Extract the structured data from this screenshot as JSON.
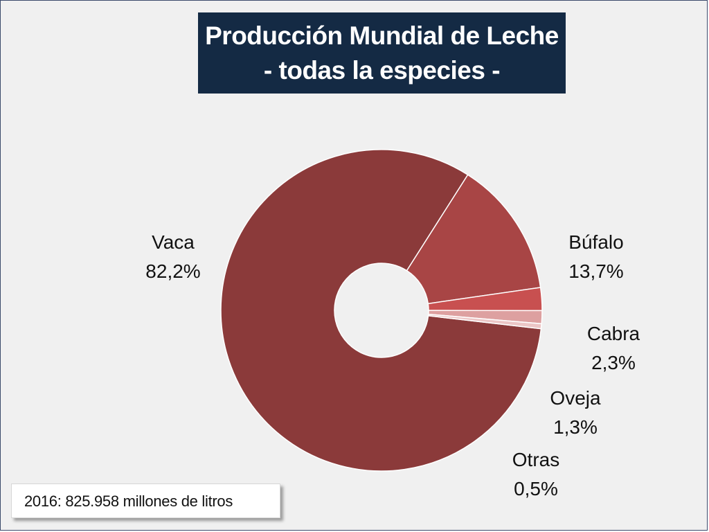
{
  "chart_data": {
    "type": "pie",
    "title_lines": [
      "Producción Mundial de Leche",
      "- todas la especies -"
    ],
    "slices": [
      {
        "name": "Vaca",
        "label": "82,2%",
        "value": 82.2,
        "color": "#8b3a3a"
      },
      {
        "name": "Búfalo",
        "label": "13,7%",
        "value": 13.7,
        "color": "#a84545"
      },
      {
        "name": "Cabra",
        "label": "2,3%",
        "value": 2.3,
        "color": "#c85050"
      },
      {
        "name": "Oveja",
        "label": "1,3%",
        "value": 1.3,
        "color": "#dda0a0"
      },
      {
        "name": "Otras",
        "label": "0,5%",
        "value": 0.5,
        "color": "#ecc6c6"
      }
    ],
    "note": "2016: 825.958  millones de litros"
  }
}
